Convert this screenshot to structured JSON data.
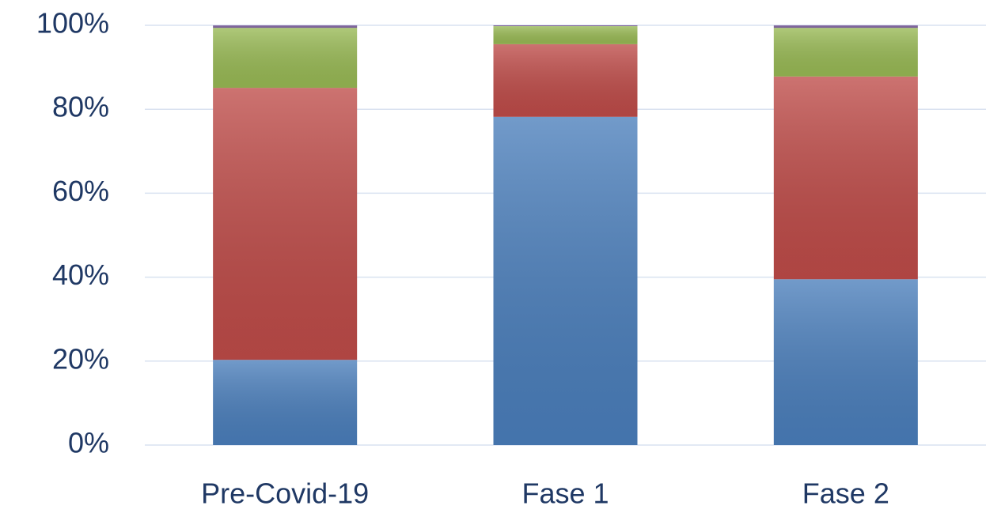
{
  "chart_data": {
    "type": "stacked_bar",
    "categories": [
      "Pre-Covid-19",
      "Fase 1",
      "Fase 2"
    ],
    "series": [
      {
        "color": "#4a7ebb",
        "values": [
          20.3,
          78.2,
          39.5
        ]
      },
      {
        "color": "#be4b48",
        "values": [
          64.8,
          17.3,
          48.3
        ]
      },
      {
        "color": "#98b954",
        "values": [
          14.3,
          4.3,
          11.6
        ]
      },
      {
        "color": "#7d60a0",
        "values": [
          0.6,
          0.2,
          0.6
        ]
      }
    ],
    "ylim": [
      0,
      100
    ],
    "yticks": [
      {
        "value": 0,
        "label": "0%"
      },
      {
        "value": 20,
        "label": "20%"
      },
      {
        "value": 40,
        "label": "40%"
      },
      {
        "value": 60,
        "label": "60%"
      },
      {
        "value": 80,
        "label": "80%"
      },
      {
        "value": 100,
        "label": "100%"
      }
    ],
    "grid": true
  }
}
